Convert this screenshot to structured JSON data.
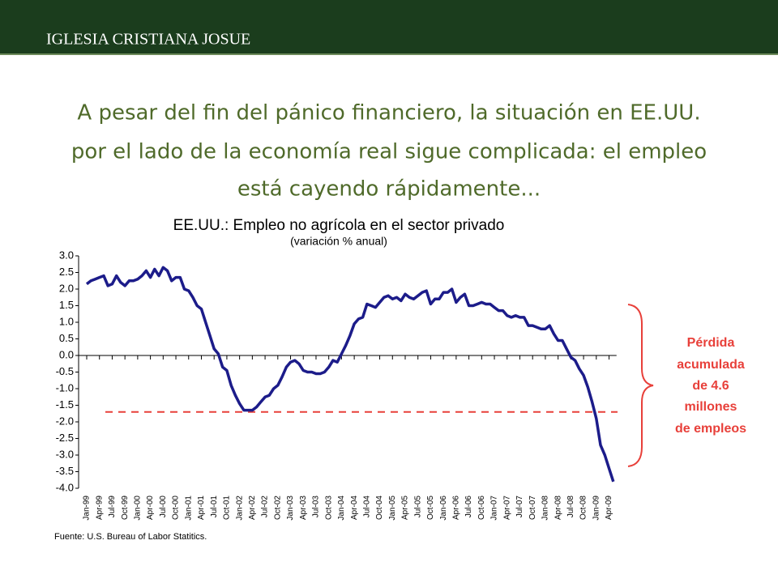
{
  "header": {
    "title": "IGLESIA CRISTIANA JOSUE"
  },
  "slide_title": [
    "A pesar del fin del pánico financiero, la situación en EE.UU.",
    "por el lado de la economía real sigue complicada: el empleo",
    "está cayendo rápidamente..."
  ],
  "chart_data": {
    "type": "line",
    "title": "EE.UU.: Empleo no agrícola en el sector privado",
    "subtitle": "(variación % anual)",
    "color": "#1c1c8a",
    "categories": [
      "Jan-99",
      null,
      null,
      "Apr-99",
      null,
      null,
      "Jul-99",
      null,
      null,
      "Oct-99",
      null,
      null,
      "Jan-00",
      null,
      null,
      "Apr-00",
      null,
      null,
      "Jul-00",
      null,
      null,
      "Oct-00",
      null,
      null,
      "Jan-01",
      null,
      null,
      "Apr-01",
      null,
      null,
      "Jul-01",
      null,
      null,
      "Oct-01",
      null,
      null,
      "Jan-02",
      null,
      null,
      "Apr-02",
      null,
      null,
      "Jul-02",
      null,
      null,
      "Oct-02",
      null,
      null,
      "Jan-03",
      null,
      null,
      "Apr-03",
      null,
      null,
      "Jul-03",
      null,
      null,
      "Oct-03",
      null,
      null,
      "Jan-04",
      null,
      null,
      "Apr-04",
      null,
      null,
      "Jul-04",
      null,
      null,
      "Oct-04",
      null,
      null,
      "Jan-05",
      null,
      null,
      "Apr-05",
      null,
      null,
      "Jul-05",
      null,
      null,
      "Oct-05",
      null,
      null,
      "Jan-06",
      null,
      null,
      "Apr-06",
      null,
      null,
      "Jul-06",
      null,
      null,
      "Oct-06",
      null,
      null,
      "Jan-07",
      null,
      null,
      "Apr-07",
      null,
      null,
      "Jul-07",
      null,
      null,
      "Oct-07",
      null,
      null,
      "Jan-08",
      null,
      null,
      "Apr-08",
      null,
      null,
      "Jul-08",
      null,
      null,
      "Oct-08",
      null,
      null,
      "Jan-09",
      null,
      null,
      "Apr-09",
      null
    ],
    "values": [
      2.15,
      2.25,
      2.3,
      2.35,
      2.4,
      2.1,
      2.15,
      2.4,
      2.2,
      2.1,
      2.25,
      2.25,
      2.3,
      2.4,
      2.55,
      2.35,
      2.6,
      2.4,
      2.65,
      2.55,
      2.25,
      2.35,
      2.35,
      2.0,
      1.95,
      1.75,
      1.5,
      1.4,
      1.0,
      0.6,
      0.2,
      0.05,
      -0.35,
      -0.45,
      -0.9,
      -1.2,
      -1.45,
      -1.65,
      -1.65,
      -1.65,
      -1.55,
      -1.4,
      -1.25,
      -1.2,
      -1.0,
      -0.9,
      -0.65,
      -0.35,
      -0.2,
      -0.15,
      -0.25,
      -0.45,
      -0.5,
      -0.5,
      -0.55,
      -0.55,
      -0.5,
      -0.35,
      -0.15,
      -0.2,
      0.05,
      0.3,
      0.6,
      0.95,
      1.1,
      1.15,
      1.55,
      1.5,
      1.45,
      1.6,
      1.75,
      1.8,
      1.7,
      1.75,
      1.65,
      1.85,
      1.75,
      1.7,
      1.8,
      1.9,
      1.95,
      1.55,
      1.7,
      1.7,
      1.9,
      1.9,
      2.0,
      1.6,
      1.75,
      1.85,
      1.5,
      1.5,
      1.55,
      1.6,
      1.55,
      1.55,
      1.45,
      1.35,
      1.35,
      1.2,
      1.15,
      1.2,
      1.15,
      1.15,
      0.9,
      0.9,
      0.85,
      0.8,
      0.8,
      0.9,
      0.65,
      0.45,
      0.45,
      0.2,
      -0.05,
      -0.15,
      -0.4,
      -0.6,
      -0.95,
      -1.4,
      -1.9,
      -2.7,
      -3.0,
      -3.4,
      -3.8
    ],
    "ylim": [
      -4,
      3
    ],
    "yticks": [
      {
        "value": 3,
        "label": "3.0"
      },
      2.5,
      {
        "value": 2,
        "label": "2.0"
      },
      1.5,
      {
        "value": 1,
        "label": "1.0"
      },
      0.5,
      {
        "value": 0,
        "label": "0.0"
      },
      -0.5,
      {
        "value": -1,
        "label": "-1.0"
      },
      -1.5,
      {
        "value": -2,
        "label": "-2.0"
      },
      -2.5,
      {
        "value": -3,
        "label": "-3.0"
      },
      -3.5,
      {
        "value": -4,
        "label": "-4.0"
      }
    ],
    "reference_line": {
      "value": -1.7,
      "color": "#e8403a"
    },
    "annotation": [
      "Pérdida",
      "acumulada",
      "de 4.6",
      "millones",
      "de empleos"
    ],
    "annotation_color": "#e8403a",
    "source": "Fuente: U.S. Bureau of Labor Statitics."
  }
}
